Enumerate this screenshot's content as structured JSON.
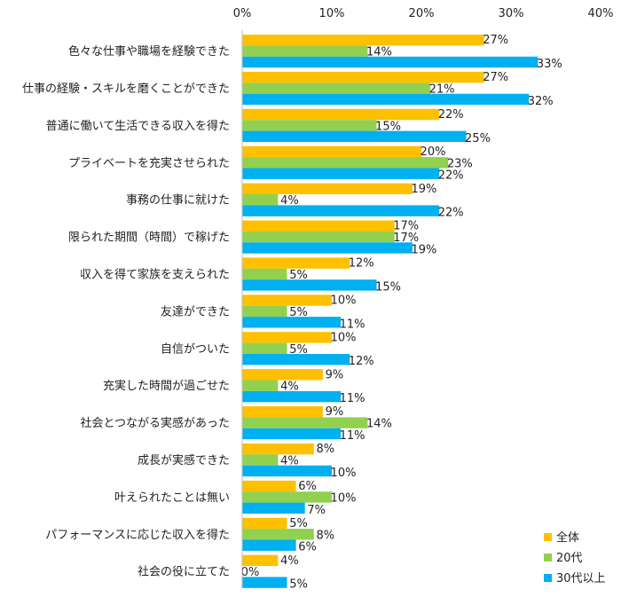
{
  "chart_data": {
    "type": "bar",
    "orientation": "horizontal",
    "title": "",
    "xlabel": "",
    "ylabel": "",
    "xlim": [
      0,
      40
    ],
    "ticks": [
      0,
      10,
      20,
      30,
      40
    ],
    "tick_labels": [
      "0%",
      "10%",
      "20%",
      "30%",
      "40%"
    ],
    "grid": false,
    "legend_position": "bottom-right",
    "categories": [
      "色々な仕事や職場を経験できた",
      "仕事の経験・スキルを磨くことができた",
      "普通に働いて生活できる収入を得た",
      "プライベートを充実させられた",
      "事務の仕事に就けた",
      "限られた期間（時間）で稼げた",
      "収入を得て家族を支えられた",
      "友達ができた",
      "自信がついた",
      "充実した時間が過ごせた",
      "社会とつながる実感があった",
      "成長が実感できた",
      "叶えられたことは無い",
      "パフォーマンスに応じた収入を得た",
      "社会の役に立てた"
    ],
    "series": [
      {
        "name": "全体",
        "color": "#FFC000",
        "values": [
          27,
          27,
          22,
          20,
          19,
          17,
          12,
          10,
          10,
          9,
          9,
          8,
          6,
          5,
          4
        ]
      },
      {
        "name": "20代",
        "color": "#92D050",
        "values": [
          14,
          21,
          15,
          23,
          4,
          17,
          5,
          5,
          5,
          4,
          14,
          4,
          10,
          8,
          0
        ]
      },
      {
        "name": "30代以上",
        "color": "#00B0F0",
        "values": [
          33,
          32,
          25,
          22,
          22,
          19,
          15,
          11,
          12,
          11,
          11,
          10,
          7,
          6,
          5
        ]
      }
    ],
    "value_suffix": "%"
  }
}
